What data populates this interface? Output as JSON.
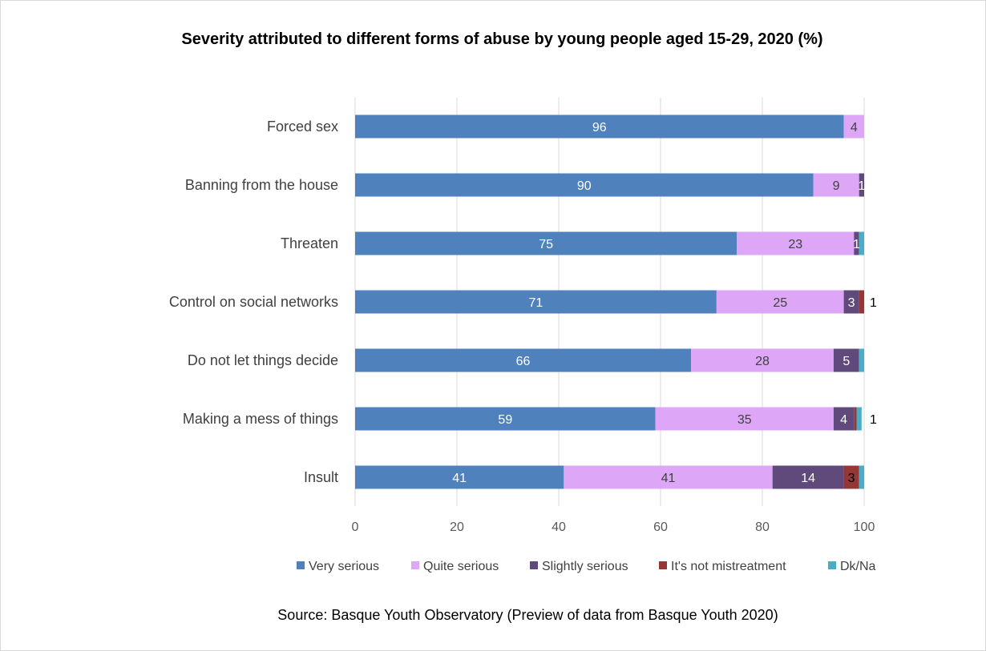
{
  "title": "Severity attributed to different forms of abuse by young people aged 15-29, 2020 (%)",
  "source": "Source: Basque Youth Observatory (Preview of data from Basque Youth 2020)",
  "chart_data": {
    "type": "bar",
    "orientation": "horizontal",
    "stacked": true,
    "title": "Severity attributed to different forms of abuse by young people aged 15-29, 2020 (%)",
    "categories": [
      "Forced sex",
      "Banning from the house",
      "Threaten",
      "Control on social networks",
      "Do not let things decide",
      "Making a mess of things",
      "Insult"
    ],
    "xlim": [
      0,
      100
    ],
    "xticks": [
      0,
      20,
      40,
      60,
      80,
      100
    ],
    "grid": true,
    "legend_position": "bottom",
    "series": [
      {
        "name": "Very serious",
        "color": "#4f81bd",
        "label_color": "#ffffff",
        "values": [
          96,
          90,
          75,
          71,
          66,
          59,
          41
        ],
        "labels": [
          "96",
          "90",
          "75",
          "71",
          "66",
          "59",
          "41"
        ]
      },
      {
        "name": "Quite serious",
        "color": "#dda6f7",
        "label_color": "#404040",
        "values": [
          4,
          9,
          23,
          25,
          28,
          35,
          41
        ],
        "labels": [
          "4",
          "9",
          "23",
          "25",
          "28",
          "35",
          "41"
        ]
      },
      {
        "name": "Slightly serious",
        "color": "#604a7b",
        "label_color": "#ffffff",
        "values": [
          0,
          1,
          1,
          3,
          5,
          4,
          14
        ],
        "labels": [
          "",
          "1",
          "1",
          "3",
          "5",
          "4",
          "14"
        ]
      },
      {
        "name": "It's not mistreatment",
        "color": "#953735",
        "label_color": "#000000",
        "values": [
          0,
          0,
          0,
          1,
          0,
          0.5,
          3
        ],
        "labels": [
          "",
          "",
          "",
          "1",
          "",
          "",
          "3"
        ]
      },
      {
        "name": "Dk/Na",
        "color": "#4bacc6",
        "label_color": "#000000",
        "values": [
          0,
          0,
          1,
          0,
          1,
          1,
          1
        ],
        "labels": [
          "",
          "",
          "",
          "",
          "",
          "1",
          ""
        ]
      }
    ]
  }
}
